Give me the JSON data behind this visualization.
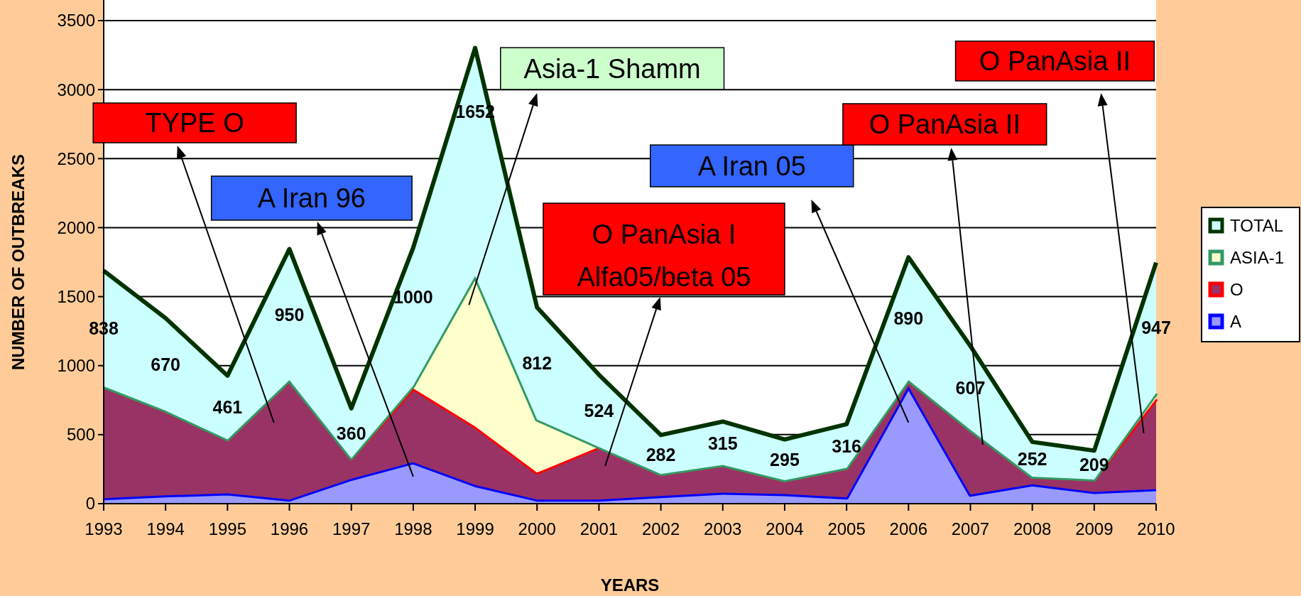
{
  "chart_data": {
    "type": "area",
    "stacked": true,
    "xlabel": "YEARS",
    "ylabel": "NUMBER OF OUTBREAKS",
    "x": [
      1993,
      1994,
      1995,
      1996,
      1997,
      1998,
      1999,
      2000,
      2001,
      2002,
      2003,
      2004,
      2005,
      2006,
      2007,
      2008,
      2009,
      2010
    ],
    "xlim": [
      1993,
      2010
    ],
    "xticks": [
      1993,
      1994,
      1995,
      1996,
      1997,
      1998,
      1999,
      2000,
      2001,
      2002,
      2003,
      2004,
      2005,
      2006,
      2007,
      2008,
      2009,
      2010
    ],
    "ylim": [
      0,
      3500
    ],
    "yticks": [
      0,
      500,
      1000,
      1500,
      2000,
      2500,
      3000,
      3500
    ],
    "grid": "y",
    "legend": "right",
    "series": [
      {
        "name": "A",
        "color": "#9999ff",
        "values": [
          40,
          60,
          75,
          30,
          180,
          300,
          135,
          30,
          30,
          55,
          80,
          70,
          45,
          850,
          65,
          140,
          85,
          105
        ]
      },
      {
        "name": "O",
        "color": "#993366",
        "values": [
          810,
          614,
          391,
          865,
          150,
          535,
          425,
          195,
          380,
          160,
          200,
          100,
          215,
          45,
          470,
          55,
          90,
          655
        ]
      },
      {
        "name": "ASIA-1",
        "color": "#ffffcc",
        "values": [
          0,
          0,
          0,
          0,
          0,
          20,
          1090,
          385,
          0,
          0,
          0,
          0,
          0,
          0,
          0,
          0,
          0,
          40
        ]
      },
      {
        "name": "TOTAL",
        "color": "#ccffff",
        "values": [
          838,
          670,
          461,
          950,
          360,
          1000,
          1652,
          812,
          524,
          282,
          315,
          295,
          316,
          890,
          607,
          252,
          209,
          947
        ],
        "value_labels": [
          "838",
          "670",
          "461",
          "950",
          "360",
          "1000",
          "1652",
          "812",
          "524",
          "282",
          "315",
          "295",
          "316",
          "890",
          "607",
          "252",
          "209",
          "947"
        ]
      }
    ],
    "annotations": [
      "TYPE O",
      "A Iran 96",
      "Asia-1 Shamm",
      "O PanAsia I\nAlfa05/beta 05",
      "A Iran 05",
      {
        "text": "O PanAsia II",
        "x": 2007.2,
        "y": 427
      },
      "O PanAsia II"
    ]
  }
}
